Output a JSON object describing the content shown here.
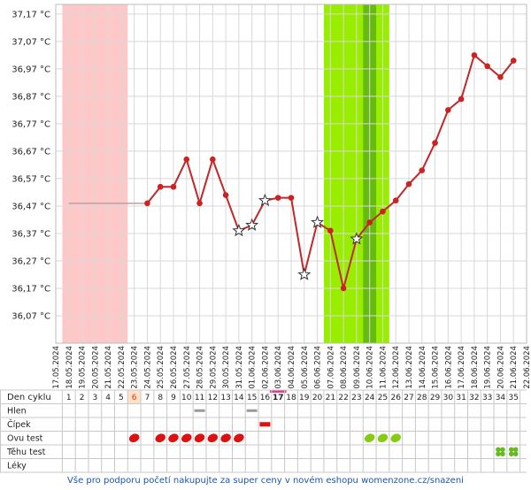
{
  "chart_data": {
    "type": "line",
    "x": [
      "17.05.2024",
      "18.05.2024",
      "19.05.2024",
      "20.05.2024",
      "21.05.2024",
      "22.05.2024",
      "23.05.2024",
      "24.05.2024",
      "25.05.2024",
      "26.05.2024",
      "27.05.2024",
      "28.05.2024",
      "29.05.2024",
      "30.05.2024",
      "31.05.2024",
      "01.06.2024",
      "02.06.2024",
      "03.06.2024",
      "04.06.2024",
      "05.06.2024",
      "06.06.2024",
      "07.06.2024",
      "08.06.2024",
      "09.06.2024",
      "10.06.2024",
      "11.06.2024",
      "12.06.2024",
      "13.06.2024",
      "14.06.2024",
      "15.06.2024",
      "16.06.2024",
      "17.06.2024",
      "18.06.2024",
      "19.06.2024",
      "20.06.2024",
      "21.06.2024",
      "22.06.2024"
    ],
    "series": [
      {
        "color": "#c0282a",
        "values": [
          null,
          null,
          null,
          null,
          null,
          null,
          null,
          36.48,
          36.54,
          36.54,
          36.64,
          36.48,
          36.64,
          36.51,
          36.38,
          36.4,
          36.49,
          36.5,
          36.5,
          36.22,
          36.41,
          36.38,
          36.17,
          36.35,
          36.41,
          36.45,
          36.49,
          36.55,
          36.6,
          36.7,
          36.82,
          36.86,
          37.02,
          36.98,
          36.94,
          37.0,
          null
        ],
        "markers": [
          null,
          null,
          null,
          null,
          null,
          null,
          null,
          "dot",
          "dot",
          "dot",
          "dot",
          "dot",
          "dot",
          "dot",
          "star",
          "star",
          "star",
          "dot",
          "dot",
          "star",
          "star",
          "dot",
          "dot",
          "star",
          "dot",
          "dot",
          "dot",
          "dot",
          "dot",
          "dot",
          "dot",
          "dot",
          "dot",
          "dot",
          "dot",
          "dot",
          null
        ]
      }
    ],
    "ylim": [
      35.97,
      37.205
    ],
    "yticks": [
      {
        "value": 36.07,
        "label": "36,07 °C"
      },
      {
        "value": 36.17,
        "label": "36,17 °C"
      },
      {
        "value": 36.27,
        "label": "36,27 °C"
      },
      {
        "value": 36.37,
        "label": "36,37 °C"
      },
      {
        "value": 36.47,
        "label": "36,47 °C"
      },
      {
        "value": 36.57,
        "label": "36,57 °C"
      },
      {
        "value": 36.67,
        "label": "36,67 °C"
      },
      {
        "value": 36.77,
        "label": "36,77 °C"
      },
      {
        "value": 36.87,
        "label": "36,87 °C"
      },
      {
        "value": 36.97,
        "label": "36,97 °C"
      },
      {
        "value": 37.07,
        "label": "37,07 °C"
      },
      {
        "value": 37.17,
        "label": "37,17 °C"
      }
    ],
    "grid": true,
    "period_days": [
      1,
      5
    ],
    "period_color": "#ffc8c8",
    "fertile_days": [
      21,
      25
    ],
    "fertile_color": "#99ee00",
    "ovulation_day": 24,
    "ovulation_color": "#66bb11"
  },
  "table": {
    "header_label": "Den cyklu",
    "cycle_days": [
      1,
      2,
      3,
      4,
      5,
      6,
      7,
      8,
      9,
      10,
      11,
      12,
      13,
      14,
      15,
      16,
      17,
      18,
      19,
      20,
      21,
      22,
      23,
      24,
      25,
      26,
      27,
      28,
      29,
      30,
      31,
      32,
      33,
      34,
      35
    ],
    "marked_day": 6,
    "today_day": 17,
    "rows": [
      {
        "label": "Hlen",
        "groups": [
          {
            "days": [
              11,
              15
            ],
            "color": "#999999",
            "shape": "bar"
          }
        ]
      },
      {
        "label": "Čípek",
        "groups": [
          {
            "days": [
              16
            ],
            "color": "#dd1111",
            "shape": "thickbar"
          }
        ]
      },
      {
        "label": "Ovu test",
        "groups": [
          {
            "days": [
              6,
              8,
              9,
              10,
              11,
              12,
              13,
              14
            ],
            "color": "#dd1111",
            "shape": "oval"
          },
          {
            "days": [
              24,
              25,
              26
            ],
            "color": "#88cc11",
            "shape": "oval"
          }
        ]
      },
      {
        "label": "Těhu test",
        "groups": [
          {
            "days": [
              34,
              35
            ],
            "color": "#66bb22",
            "shape": "clover"
          }
        ]
      },
      {
        "label": "Léky",
        "groups": []
      }
    ]
  },
  "footer": "Vše pro podporu početí nakupujte za super ceny v novém eshopu womenzone.cz/snazeni"
}
